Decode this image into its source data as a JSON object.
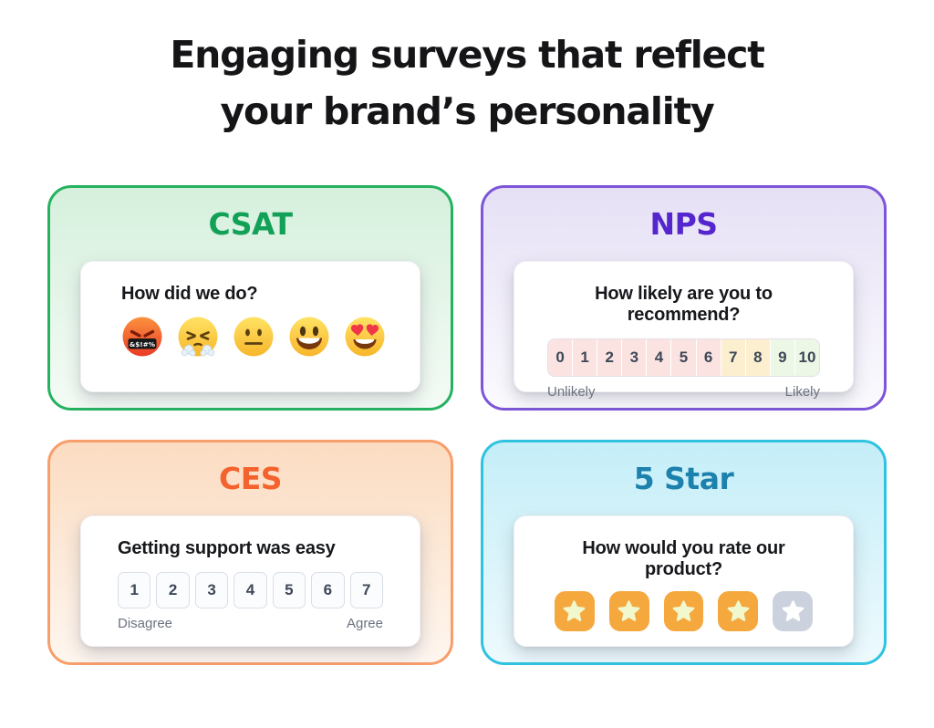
{
  "page": {
    "title_line1": "Engaging surveys that reflect",
    "title_line2": "your brand’s personality",
    "title_color": "#151518",
    "background": "#FFFFFF"
  },
  "cards": [
    {
      "id": "csat",
      "title": "CSAT",
      "question": "How did we do?",
      "colors": {
        "border": "#25B25F",
        "title": "#12A156",
        "bg_top": "#D6F0DD",
        "bg_bottom": "#F4FBF5"
      },
      "emojis": [
        {
          "name": "angry-swearing-emoji",
          "char": "🤬",
          "grawlix": "&$!#%"
        },
        {
          "name": "steam-from-nose-emoji",
          "char": "😤"
        },
        {
          "name": "neutral-face-emoji",
          "char": "😐"
        },
        {
          "name": "grinning-face-emoji",
          "char": "😃"
        },
        {
          "name": "heart-eyes-emoji",
          "char": "😍"
        }
      ]
    },
    {
      "id": "nps",
      "title": "NPS",
      "question": "How likely are you to recommend?",
      "colors": {
        "border": "#7D55D8",
        "title": "#5526CE",
        "bg_top": "#E6E0F5",
        "bg_bottom": "#FBFAFE"
      },
      "scale": {
        "min": 0,
        "max": 10,
        "left_label": "Unlikely",
        "right_label": "Likely",
        "number_color": "#3E4857",
        "segments": [
          {
            "from": 0,
            "to": 6,
            "color": "#FBE3E2"
          },
          {
            "from": 7,
            "to": 8,
            "color": "#FBEFD0"
          },
          {
            "from": 9,
            "to": 10,
            "color": "#EDF7E6"
          }
        ]
      }
    },
    {
      "id": "ces",
      "title": "CES",
      "question": "Getting support was easy",
      "colors": {
        "border": "#F79E6B",
        "title": "#F4632E",
        "bg_top": "#FBDCC1",
        "bg_bottom": "#FEF6EF"
      },
      "scale": {
        "min": 1,
        "max": 7,
        "left_label": "Disagree",
        "right_label": "Agree",
        "number_color": "#3E4857",
        "cell_bg": "#FBFCFE",
        "cell_border": "#D9DEE7"
      }
    },
    {
      "id": "five-star",
      "title": "5 Star",
      "question": "How would you rate our product?",
      "colors": {
        "border": "#2FC3E0",
        "title": "#1C81AC",
        "bg_top": "#C5EEF8",
        "bg_bottom": "#EDFAFD"
      },
      "rating": {
        "max": 5,
        "value": 4,
        "active_bg": "#F5A83E",
        "inactive_bg": "#CBD2DD",
        "active_star": "#F2F8CD",
        "inactive_star": "#FFFFFF"
      }
    }
  ]
}
